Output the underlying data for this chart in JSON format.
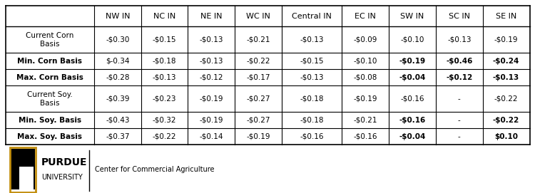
{
  "col_headers": [
    "",
    "NW IN",
    "NC IN",
    "NE IN",
    "WC IN",
    "Central IN",
    "EC IN",
    "SW IN",
    "SC IN",
    "SE IN"
  ],
  "rows": [
    {
      "label": "Current Corn\nBasis",
      "values": [
        "-$0.30",
        "-$0.15",
        "-$0.13",
        "-$0.21",
        "-$0.13",
        "-$0.09",
        "-$0.10",
        "-$0.13",
        "-$0.19"
      ],
      "bold_cols": []
    },
    {
      "label": "Min. Corn Basis",
      "values": [
        "$-0.34",
        "-$0.18",
        "-$0.13",
        "-$0.22",
        "-$0.15",
        "-$0.10",
        "-$0.19",
        "-$0.46",
        "-$0.24"
      ],
      "bold_cols": [
        6,
        7,
        8
      ]
    },
    {
      "label": "Max. Corn Basis",
      "values": [
        "-$0.28",
        "-$0.13",
        "-$0.12",
        "-$0.17",
        "-$0.13",
        "-$0.08",
        "-$0.04",
        "-$0.12",
        "-$0.13"
      ],
      "bold_cols": [
        6,
        7,
        8
      ]
    },
    {
      "label": "Current Soy.\nBasis",
      "values": [
        "-$0.39",
        "-$0.23",
        "-$0.19",
        "-$0.27",
        "-$0.18",
        "-$0.19",
        "-$0.16",
        "-",
        "-$0.22"
      ],
      "bold_cols": []
    },
    {
      "label": "Min. Soy. Basis",
      "values": [
        "-$0.43",
        "-$0.32",
        "-$0.19",
        "-$0.27",
        "-$0.18",
        "-$0.21",
        "-$0.16",
        "-",
        "-$0.22"
      ],
      "bold_cols": [
        6,
        8
      ]
    },
    {
      "label": "Max. Soy. Basis",
      "values": [
        "-$0.37",
        "-$0.22",
        "-$0.14",
        "-$0.19",
        "-$0.16",
        "-$0.16",
        "-$0.04",
        "-",
        "$0.10"
      ],
      "bold_cols": [
        6,
        8
      ]
    }
  ],
  "background_color": "#ffffff",
  "header_bg": "#ffffff",
  "bold_rows": [
    1,
    2,
    4,
    5
  ],
  "purdue_gold": "#C28E0E",
  "purdue_black": "#000000",
  "font_size": 7.5,
  "header_font_size": 8.0
}
